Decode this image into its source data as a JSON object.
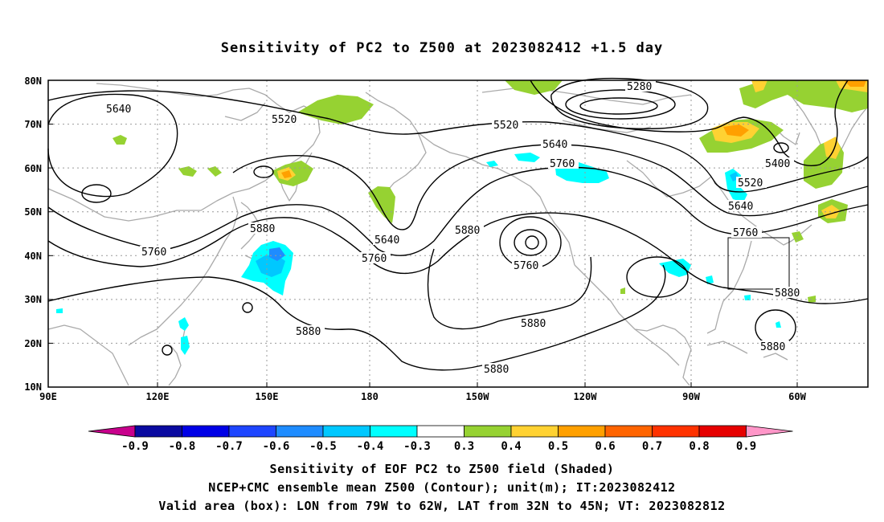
{
  "title": "Sensitivity of PC2 to Z500 at 2023082412 +1.5 day",
  "lat_labels": [
    "80N",
    "70N",
    "60N",
    "50N",
    "40N",
    "30N",
    "20N",
    "10N"
  ],
  "lon_labels": [
    "90E",
    "120E",
    "150E",
    "180",
    "150W",
    "120W",
    "90W",
    "60W"
  ],
  "contour_labels": [
    "5280",
    "5400",
    "5520",
    "5520",
    "5520",
    "5640",
    "5640",
    "5640",
    "5640",
    "5760",
    "5760",
    "5760",
    "5760",
    "5760",
    "5880",
    "5880",
    "5880",
    "5880",
    "5880",
    "5880",
    "5880"
  ],
  "colorbar": {
    "labels": [
      "-0.9",
      "-0.8",
      "-0.7",
      "-0.6",
      "-0.5",
      "-0.4",
      "-0.3",
      "0.3",
      "0.4",
      "0.5",
      "0.6",
      "0.7",
      "0.8",
      "0.9"
    ],
    "colors": [
      "#c8008c",
      "#0a0aa0",
      "#0000e6",
      "#1e46ff",
      "#1e8cff",
      "#00c8ff",
      "#00ffff",
      "#ffffff",
      "#96d232",
      "#ffd232",
      "#ffa000",
      "#ff6400",
      "#ff3200",
      "#e60000",
      "#ff96c8"
    ]
  },
  "colors": {
    "land": "#aaaaaa",
    "contour": "#000000",
    "grid": "#999999"
  },
  "captions": {
    "line1": "Sensitivity of EOF PC2 to Z500 field (Shaded)",
    "line2": "NCEP+CMC ensemble mean Z500 (Contour); unit(m); IT:2023082412",
    "line3": "Valid area (box): LON from 79W to 62W, LAT from 32N to 45N; VT: 2023082812"
  }
}
